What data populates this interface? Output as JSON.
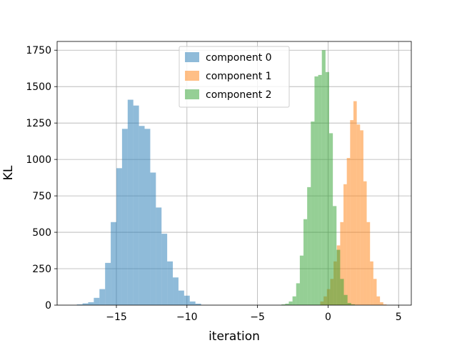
{
  "chart_data": {
    "type": "histogram",
    "xlabel": "iteration",
    "ylabel": "KL",
    "xlim": [
      -19.2,
      5.9
    ],
    "ylim": [
      0,
      1810
    ],
    "grid": true,
    "legend_position": "top-center",
    "x_ticks": [
      -15,
      -10,
      -5,
      0,
      5
    ],
    "x_tick_labels": [
      "−15",
      "−10",
      "−5",
      "0",
      "5"
    ],
    "y_ticks": [
      0,
      250,
      500,
      750,
      1000,
      1250,
      1500,
      1750
    ],
    "y_tick_labels": [
      "0",
      "250",
      "500",
      "750",
      "1000",
      "1250",
      "1500",
      "1750"
    ],
    "series": [
      {
        "name": "component 0",
        "color": "#1f77b4",
        "bin_start": -17.8,
        "bin_width": 0.4,
        "counts": [
          5,
          12,
          20,
          50,
          110,
          290,
          570,
          940,
          1210,
          1410,
          1370,
          1230,
          1210,
          910,
          670,
          490,
          300,
          190,
          100,
          65,
          25,
          10
        ]
      },
      {
        "name": "component 1",
        "color": "#ff7f0e",
        "bin_start": -0.55,
        "bin_width": 0.235,
        "counts": [
          25,
          60,
          110,
          180,
          300,
          410,
          570,
          830,
          1010,
          1270,
          1400,
          1240,
          1200,
          850,
          570,
          300,
          180,
          60,
          20,
          5
        ]
      },
      {
        "name": "component 2",
        "color": "#2ca02c",
        "bin_start": -3.3,
        "bin_width": 0.26,
        "counts": [
          5,
          10,
          25,
          60,
          150,
          340,
          590,
          810,
          1260,
          1570,
          1580,
          1750,
          1600,
          1180,
          680,
          380,
          180,
          70,
          15,
          5
        ]
      }
    ]
  }
}
